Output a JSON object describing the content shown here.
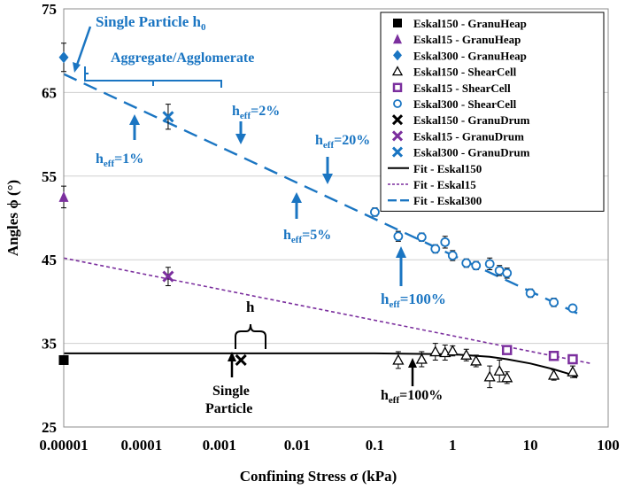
{
  "chart_data": {
    "type": "scatter",
    "xscale": "log",
    "xlim": [
      1e-05,
      100
    ],
    "ylim": [
      25,
      75
    ],
    "xlabel": "Confining Stress σ (kPa)",
    "ylabel": "Angles ϕ (°)",
    "x_ticks": [
      "0.00001",
      "0.0001",
      "0.001",
      "0.01",
      "0.1",
      "1",
      "10",
      "100"
    ],
    "y_ticks": [
      "25",
      "35",
      "45",
      "55",
      "65",
      "75"
    ],
    "grid": "horizontal",
    "legend_position": "top-right",
    "series": [
      {
        "name": "Eskal150 - GranuHeap",
        "marker": "square-filled",
        "color": "#000000",
        "points": [
          [
            1e-05,
            33.0
          ]
        ],
        "errors": []
      },
      {
        "name": "Eskal15 - GranuHeap",
        "marker": "triangle-filled",
        "color": "#7b2f9e",
        "points": [
          [
            1e-05,
            52.5
          ]
        ],
        "errors": [
          [
            51.2,
            53.8
          ]
        ]
      },
      {
        "name": "Eskal300 - GranuHeap",
        "marker": "diamond-filled",
        "color": "#1a75c2",
        "points": [
          [
            1e-05,
            69.2
          ]
        ],
        "errors": [
          [
            67.5,
            70.9
          ]
        ]
      },
      {
        "name": "Eskal150 - ShearCell",
        "marker": "triangle-open",
        "color": "#000000",
        "points": [
          [
            0.2,
            33.0
          ],
          [
            0.4,
            33.1
          ],
          [
            0.6,
            34.0
          ],
          [
            0.8,
            33.9
          ],
          [
            1.0,
            34.1
          ],
          [
            1.5,
            33.6
          ],
          [
            2.0,
            32.9
          ],
          [
            3.0,
            31.0
          ],
          [
            4.0,
            31.7
          ],
          [
            5.0,
            30.9
          ],
          [
            20,
            31.2
          ],
          [
            35,
            31.6
          ]
        ],
        "errors": [
          [
            32.0,
            34.0
          ],
          [
            32.2,
            34.0
          ],
          [
            33.0,
            35.0
          ],
          [
            33.0,
            34.8
          ],
          [
            33.5,
            34.7
          ],
          [
            32.9,
            34.3
          ],
          [
            32.2,
            33.6
          ],
          [
            29.7,
            32.3
          ],
          [
            30.4,
            33.0
          ],
          [
            30.2,
            31.6
          ],
          [
            30.6,
            31.8
          ],
          [
            30.9,
            32.3
          ]
        ]
      },
      {
        "name": "Eskal15 - ShearCell",
        "marker": "square-open",
        "color": "#7b2f9e",
        "points": [
          [
            5.0,
            34.2
          ],
          [
            20,
            33.5
          ],
          [
            35,
            33.1
          ]
        ],
        "errors": []
      },
      {
        "name": "Eskal300 - ShearCell",
        "marker": "circle-open",
        "color": "#1a75c2",
        "points": [
          [
            0.1,
            50.7
          ],
          [
            0.2,
            47.8
          ],
          [
            0.4,
            47.7
          ],
          [
            0.6,
            46.3
          ],
          [
            0.8,
            47.1
          ],
          [
            1.0,
            45.5
          ],
          [
            1.5,
            44.6
          ],
          [
            2.0,
            44.3
          ],
          [
            3.0,
            44.5
          ],
          [
            4.0,
            43.7
          ],
          [
            5.0,
            43.4
          ],
          [
            10,
            41.0
          ],
          [
            20,
            39.9
          ],
          [
            35,
            39.2
          ]
        ],
        "errors": [
          [
            50.2,
            51.2
          ],
          [
            47.2,
            48.4
          ],
          [
            47.2,
            48.2
          ],
          [
            45.8,
            46.8
          ],
          [
            46.4,
            47.8
          ],
          [
            44.9,
            46.1
          ],
          [
            44.1,
            45.1
          ],
          [
            43.8,
            44.8
          ],
          [
            43.8,
            45.2
          ],
          [
            43.1,
            44.3
          ],
          [
            42.8,
            44.0
          ],
          [
            40.5,
            41.5
          ],
          [
            39.4,
            40.4
          ],
          [
            38.8,
            39.6
          ]
        ]
      },
      {
        "name": "Eskal150 - GranuDrum",
        "marker": "x",
        "color": "#000000",
        "points": [
          [
            0.0019,
            33.0
          ]
        ],
        "errors": []
      },
      {
        "name": "Eskal15 - GranuDrum",
        "marker": "x",
        "color": "#7b2f9e",
        "points": [
          [
            0.00022,
            43.0
          ]
        ],
        "errors": [
          [
            41.9,
            44.1
          ]
        ]
      },
      {
        "name": "Eskal300 - GranuDrum",
        "marker": "x",
        "color": "#1a75c2",
        "points": [
          [
            0.00022,
            62.1
          ]
        ],
        "errors": [
          [
            60.6,
            63.6
          ]
        ]
      }
    ],
    "fits": [
      {
        "name": "Fit - Eskal150",
        "style": "solid",
        "color": "#000000",
        "points": [
          [
            1e-05,
            33.8
          ],
          [
            0.1,
            33.8
          ],
          [
            1,
            33.7
          ],
          [
            3,
            33.4
          ],
          [
            5,
            33.1
          ],
          [
            10,
            32.6
          ],
          [
            20,
            31.9
          ],
          [
            30,
            31.4
          ],
          [
            40,
            30.9
          ]
        ]
      },
      {
        "name": "Fit - Eskal15",
        "style": "dotted",
        "color": "#7b2f9e",
        "points": [
          [
            1e-05,
            45.2
          ],
          [
            60,
            32.6
          ]
        ]
      },
      {
        "name": "Fit - Eskal300",
        "style": "dashed",
        "color": "#1a75c2",
        "points": [
          [
            1e-05,
            67.2
          ],
          [
            40,
            38.6
          ]
        ]
      }
    ]
  },
  "annotations": {
    "single_particle_h0": {
      "main": "Single Particle h",
      "sub": "0"
    },
    "aggregate": "Aggregate/Agglomerate",
    "heff_1": {
      "main": "h",
      "sub": "eff",
      "tail": "=1%"
    },
    "heff_2": {
      "main": "h",
      "sub": "eff",
      "tail": "=2%"
    },
    "heff_5": {
      "main": "h",
      "sub": "eff",
      "tail": "=5%"
    },
    "heff_20": {
      "main": "h",
      "sub": "eff",
      "tail": "=20%"
    },
    "heff_100_blue": {
      "main": "h",
      "sub": "eff",
      "tail": "=100%"
    },
    "heff_100_black": {
      "main": "h",
      "sub": "eff",
      "tail": "=100%"
    },
    "h_label": "h",
    "single_particle_line1": "Single",
    "single_particle_line2": "Particle"
  }
}
